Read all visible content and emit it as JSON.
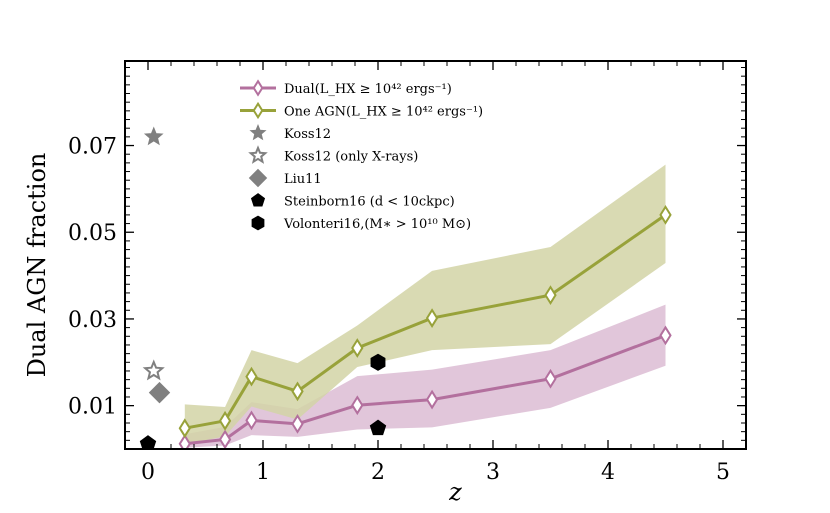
{
  "chart_data": {
    "type": "line",
    "xlabel": "z",
    "ylabel": "Dual AGN fraction",
    "xlim": [
      -0.2,
      5.2
    ],
    "ylim": [
      0.0,
      0.0895
    ],
    "xticks": [
      0,
      1,
      2,
      3,
      4,
      5
    ],
    "xtick_labels": [
      "0",
      "1",
      "2",
      "3",
      "4",
      "5"
    ],
    "yticks": [
      0.01,
      0.03,
      0.05,
      0.07
    ],
    "ytick_labels": [
      "0.01",
      "0.03",
      "0.05",
      "0.07"
    ],
    "grid": false,
    "legend_position": "top-center",
    "series": [
      {
        "name": "Dual(L_HX ≥ 10^42 ergs^-1)",
        "legend_label": "Dual(L_HX ≥ 10⁴² ergs⁻¹)",
        "kind": "line-band",
        "color": "#b3709e",
        "band_color": "#dcbcd4",
        "marker": "thin-diamond-open",
        "x": [
          0.32,
          0.67,
          0.9,
          1.3,
          1.82,
          2.47,
          3.5,
          4.5
        ],
        "y": [
          0.0012,
          0.0022,
          0.0066,
          0.0058,
          0.0101,
          0.0114,
          0.0162,
          0.0262
        ],
        "lower": [
          0.0003,
          0.0008,
          0.0032,
          0.0028,
          0.0045,
          0.005,
          0.0095,
          0.0192
        ],
        "upper": [
          0.0034,
          0.0051,
          0.0108,
          0.0092,
          0.0168,
          0.0183,
          0.0228,
          0.0333
        ]
      },
      {
        "name": "One AGN(L_HX ≥ 10^42 ergs^-1)",
        "legend_label": "One AGN(L_HX ≥ 10⁴² ergs⁻¹)",
        "kind": "line-band",
        "color": "#98a23a",
        "band_color": "#d2d4a6",
        "marker": "thin-diamond-open",
        "x": [
          0.32,
          0.67,
          0.9,
          1.3,
          1.82,
          2.47,
          3.5,
          4.5
        ],
        "y": [
          0.0048,
          0.0065,
          0.0167,
          0.0133,
          0.0233,
          0.0302,
          0.0355,
          0.054
        ],
        "lower": [
          0.0011,
          0.0029,
          0.0098,
          0.0068,
          0.0189,
          0.0228,
          0.0242,
          0.0429
        ],
        "upper": [
          0.0103,
          0.0097,
          0.0228,
          0.0198,
          0.0285,
          0.0411,
          0.0466,
          0.0656
        ]
      },
      {
        "name": "Koss12",
        "kind": "points",
        "marker": "star-filled",
        "color": "#808080",
        "x": [
          0.05
        ],
        "y": [
          0.072
        ]
      },
      {
        "name": "Koss12 (only X-rays)",
        "kind": "points",
        "marker": "star-open",
        "color": "#808080",
        "x": [
          0.05
        ],
        "y": [
          0.018
        ]
      },
      {
        "name": "Liu11",
        "kind": "points",
        "marker": "diamond-filled",
        "color": "#808080",
        "x": [
          0.1
        ],
        "y": [
          0.013
        ]
      },
      {
        "name": "Steinborn16 (d < 10ckpc)",
        "legend_label": "Steinborn16 (d < 10ckpc)",
        "kind": "points",
        "marker": "pentagon-filled",
        "color": "#000000",
        "x": [
          0.0,
          2.0
        ],
        "y": [
          0.0012,
          0.0048
        ]
      },
      {
        "name": "Volonteri16,(M_* > 10^10 M_sun)",
        "legend_label": "Volonteri16,(M∗ > 10¹⁰ M⊙)",
        "kind": "points",
        "marker": "hexagon-filled",
        "color": "#000000",
        "x": [
          2.0
        ],
        "y": [
          0.02
        ]
      }
    ]
  }
}
